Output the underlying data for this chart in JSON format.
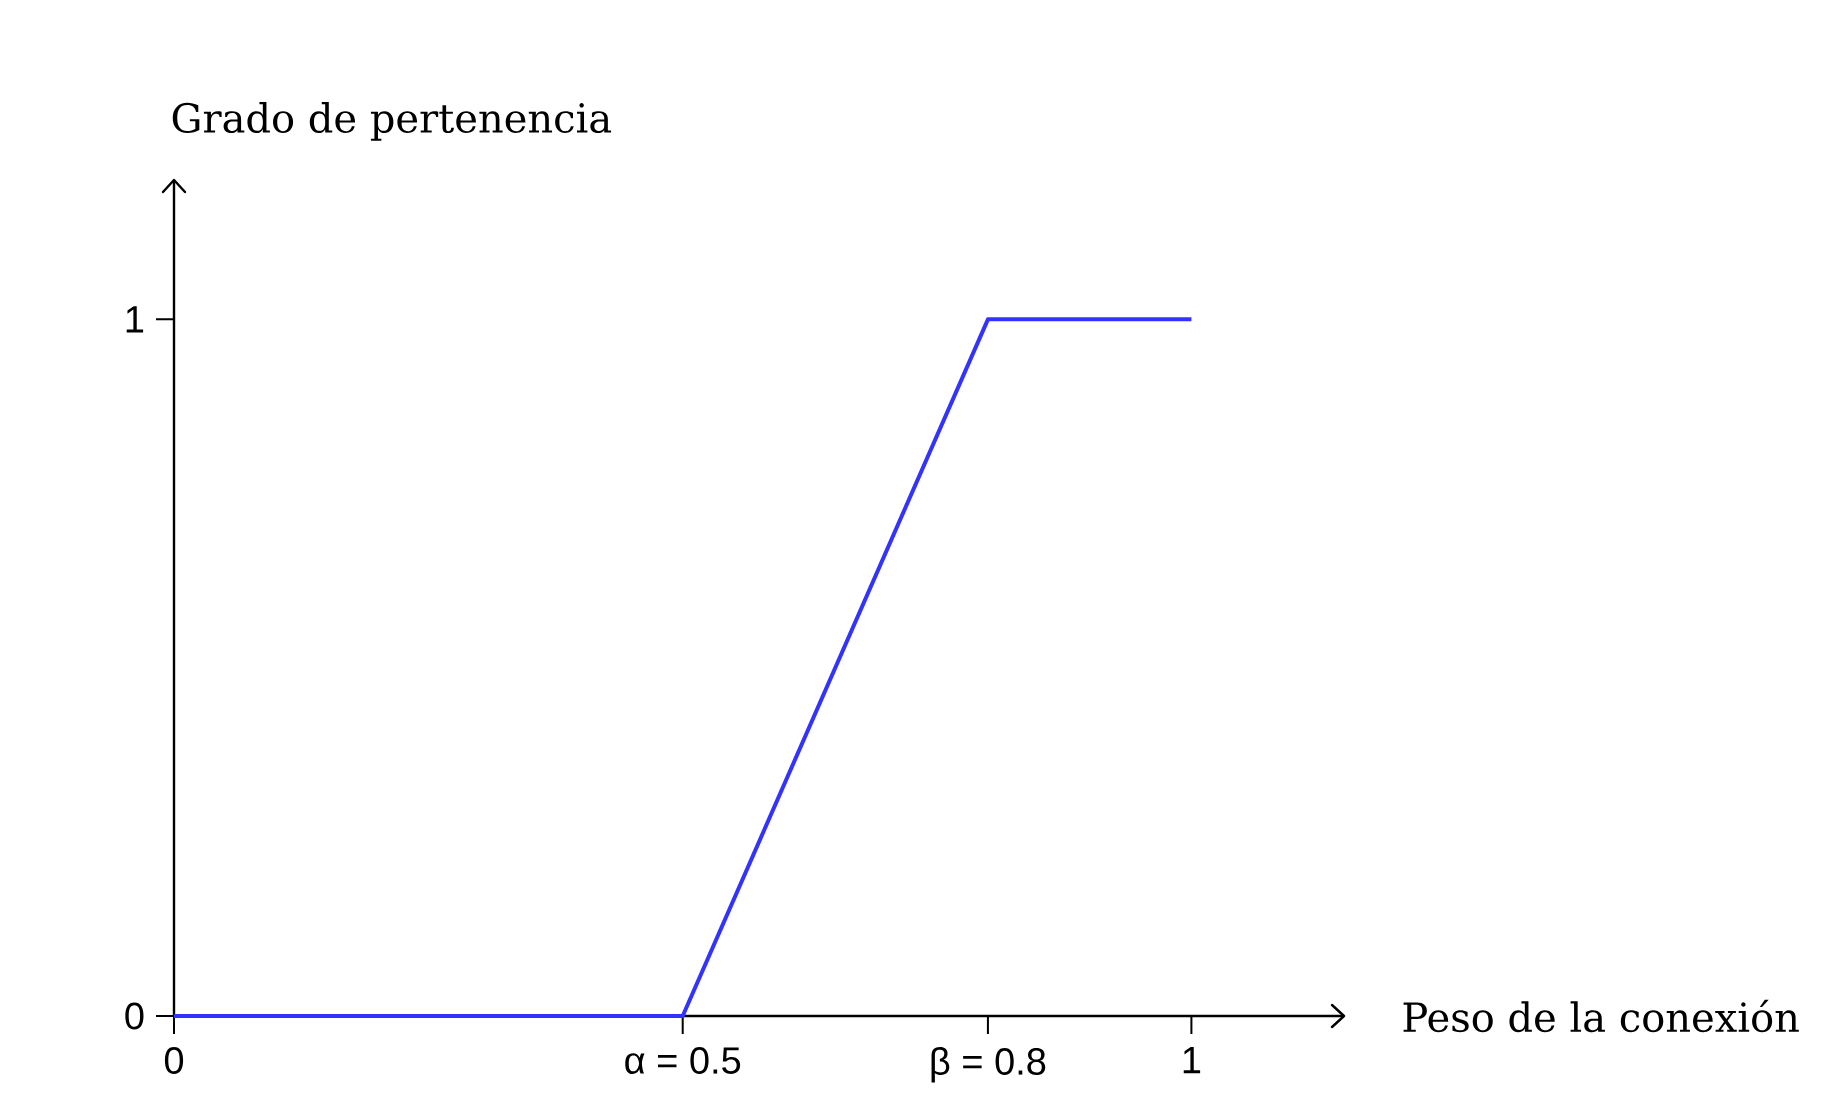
{
  "chart_data": {
    "type": "line",
    "xlabel": "Peso de la conexión",
    "ylabel": "Grado de pertenencia",
    "x": [
      0,
      0.5,
      0.8,
      1
    ],
    "series": [
      {
        "color": "#3333ff",
        "values": [
          0,
          0,
          1,
          1
        ]
      }
    ],
    "xlim": [
      0,
      1.15
    ],
    "ylim": [
      0,
      1.2
    ],
    "xticks": [
      0,
      {
        "value": 0.5,
        "label": "α = 0.5"
      },
      {
        "value": 0.8,
        "label": "β = 0.8"
      },
      1
    ],
    "yticks": [
      0,
      1
    ],
    "marker": "none",
    "line_style": "solid"
  }
}
